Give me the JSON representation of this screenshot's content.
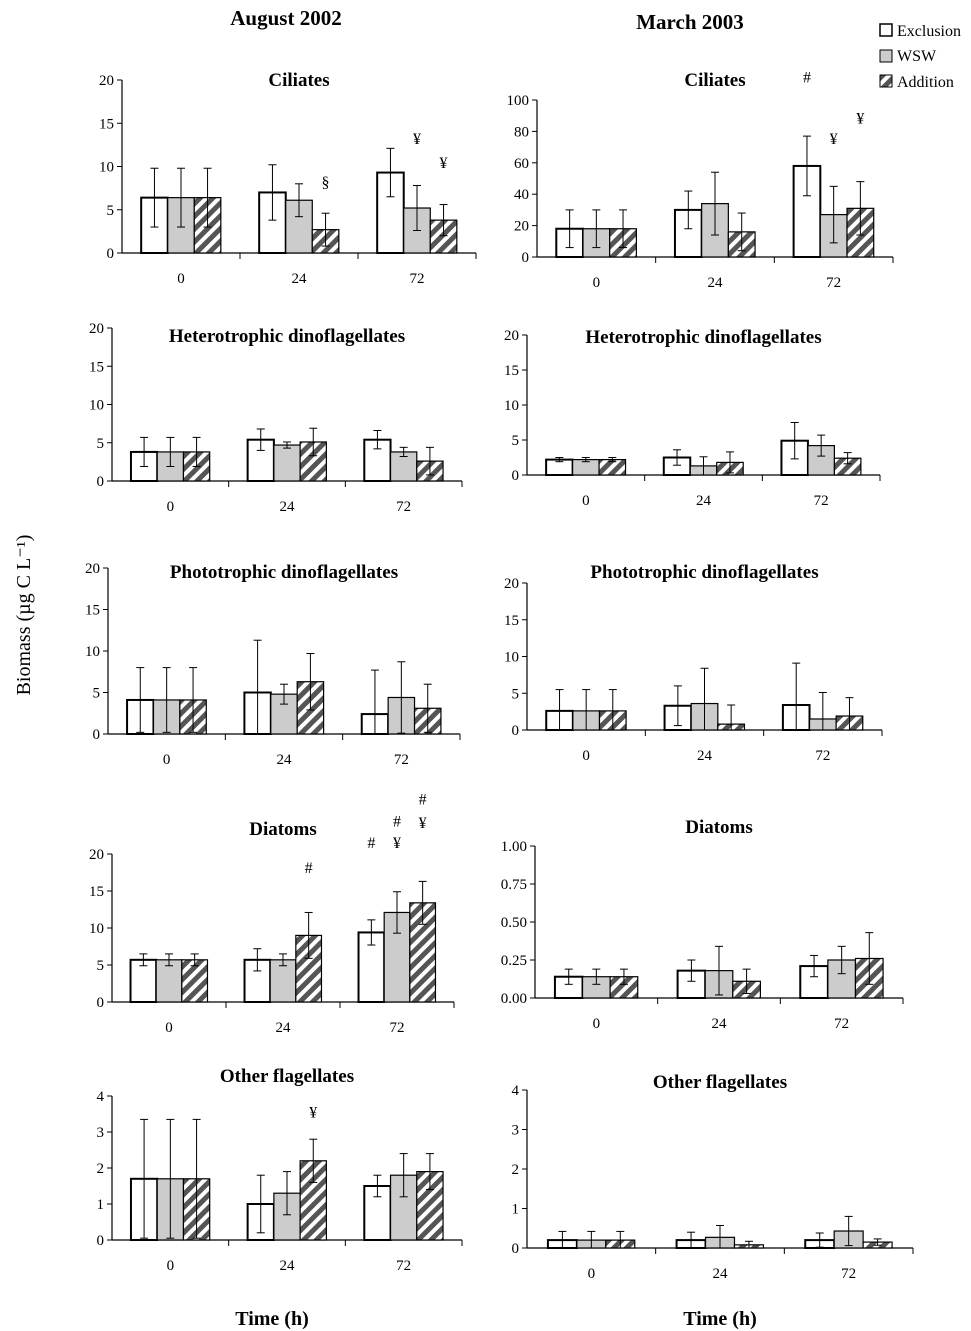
{
  "figure": {
    "columns": [
      "August 2002",
      "March 2003"
    ],
    "ylabel": "Biomass (µg C L⁻¹)",
    "xlabel": "Time (h)",
    "legend": [
      "Exclusion",
      "WSW",
      "Addition"
    ],
    "colors": {
      "Exclusion": "#ffffff",
      "WSW": "#cccccc",
      "Addition": "#555555"
    },
    "legend_position": "top-right"
  },
  "chart_data": [
    {
      "type": "bar",
      "column": "August 2002",
      "title": "Ciliates",
      "categories": [
        "0",
        "24",
        "72"
      ],
      "ylim": [
        0,
        20
      ],
      "yticks": [
        0,
        5,
        10,
        15,
        20
      ],
      "tickfmt": 0,
      "series": [
        {
          "name": "Exclusion",
          "values": [
            6.4,
            7.0,
            9.3
          ],
          "errors": [
            3.4,
            3.2,
            2.8
          ]
        },
        {
          "name": "WSW",
          "values": [
            6.4,
            6.1,
            5.2
          ],
          "errors": [
            3.4,
            1.9,
            2.6
          ]
        },
        {
          "name": "Addition",
          "values": [
            6.4,
            2.7,
            3.8
          ],
          "errors": [
            3.4,
            1.9,
            1.8
          ]
        }
      ],
      "annotations": [
        {
          "text": "§",
          "category": "24",
          "series": "Addition",
          "level": 7.6
        },
        {
          "text": "¥",
          "category": "72",
          "series": "WSW",
          "level": 12.6
        },
        {
          "text": "¥",
          "category": "72",
          "series": "Addition",
          "level": 9.8
        }
      ]
    },
    {
      "type": "bar",
      "column": "March 2003",
      "title": "Ciliates",
      "categories": [
        "0",
        "24",
        "72"
      ],
      "ylim": [
        0,
        100
      ],
      "yticks": [
        0,
        20,
        40,
        60,
        80,
        100
      ],
      "tickfmt": 0,
      "series": [
        {
          "name": "Exclusion",
          "values": [
            18,
            30,
            58
          ],
          "errors": [
            12,
            12,
            19
          ]
        },
        {
          "name": "WSW",
          "values": [
            18,
            34,
            27
          ],
          "errors": [
            12,
            20,
            18
          ]
        },
        {
          "name": "Addition",
          "values": [
            18,
            16,
            31
          ],
          "errors": [
            12,
            12,
            17
          ]
        }
      ],
      "annotations": [
        {
          "text": "#",
          "category": "72",
          "series": "Exclusion",
          "level": 111
        },
        {
          "text": "¥",
          "category": "72",
          "series": "WSW",
          "level": 72
        },
        {
          "text": "¥",
          "category": "72",
          "series": "Addition",
          "level": 85
        }
      ]
    },
    {
      "type": "bar",
      "column": "August 2002",
      "title": "Heterotrophic dinoflagellates",
      "categories": [
        "0",
        "24",
        "72"
      ],
      "ylim": [
        0,
        20
      ],
      "yticks": [
        0,
        5,
        10,
        15,
        20
      ],
      "tickfmt": 0,
      "series": [
        {
          "name": "Exclusion",
          "values": [
            3.8,
            5.4,
            5.4
          ],
          "errors": [
            1.9,
            1.4,
            1.2
          ]
        },
        {
          "name": "WSW",
          "values": [
            3.8,
            4.7,
            3.8
          ],
          "errors": [
            1.9,
            0.4,
            0.6
          ]
        },
        {
          "name": "Addition",
          "values": [
            3.8,
            5.1,
            2.6
          ],
          "errors": [
            1.9,
            1.8,
            1.8
          ]
        }
      ],
      "annotations": []
    },
    {
      "type": "bar",
      "column": "March 2003",
      "title": "Heterotrophic dinoflagellates",
      "categories": [
        "0",
        "24",
        "72"
      ],
      "ylim": [
        0,
        20
      ],
      "yticks": [
        0,
        5,
        10,
        15,
        20
      ],
      "tickfmt": 0,
      "series": [
        {
          "name": "Exclusion",
          "values": [
            2.2,
            2.5,
            4.9
          ],
          "errors": [
            0.3,
            1.1,
            2.6
          ]
        },
        {
          "name": "WSW",
          "values": [
            2.2,
            1.3,
            4.2
          ],
          "errors": [
            0.3,
            1.3,
            1.5
          ]
        },
        {
          "name": "Addition",
          "values": [
            2.2,
            1.8,
            2.4
          ],
          "errors": [
            0.3,
            1.5,
            0.8
          ]
        }
      ],
      "annotations": []
    },
    {
      "type": "bar",
      "column": "August 2002",
      "title": "Phototrophic dinoflagellates",
      "categories": [
        "0",
        "24",
        "72"
      ],
      "ylim": [
        0,
        20
      ],
      "yticks": [
        0,
        5,
        10,
        15,
        20
      ],
      "tickfmt": 0,
      "series": [
        {
          "name": "Exclusion",
          "values": [
            4.1,
            5.0,
            2.4
          ],
          "errors": [
            3.9,
            6.3,
            5.3
          ]
        },
        {
          "name": "WSW",
          "values": [
            4.1,
            4.8,
            4.4
          ],
          "errors": [
            3.9,
            1.2,
            4.3
          ]
        },
        {
          "name": "Addition",
          "values": [
            4.1,
            6.3,
            3.1
          ],
          "errors": [
            3.9,
            3.4,
            2.9
          ]
        }
      ],
      "annotations": []
    },
    {
      "type": "bar",
      "column": "March 2003",
      "title": "Phototrophic dinoflagellates",
      "categories": [
        "0",
        "24",
        "72"
      ],
      "ylim": [
        0,
        20
      ],
      "yticks": [
        0,
        5,
        10,
        15,
        20
      ],
      "tickfmt": 0,
      "series": [
        {
          "name": "Exclusion",
          "values": [
            2.6,
            3.3,
            3.4
          ],
          "errors": [
            2.9,
            2.7,
            5.7
          ]
        },
        {
          "name": "WSW",
          "values": [
            2.6,
            3.6,
            1.5
          ],
          "errors": [
            2.9,
            4.8,
            3.6
          ]
        },
        {
          "name": "Addition",
          "values": [
            2.6,
            0.8,
            1.9
          ],
          "errors": [
            2.9,
            2.6,
            2.5
          ]
        }
      ],
      "annotations": []
    },
    {
      "type": "bar",
      "column": "August 2002",
      "title": "Diatoms",
      "categories": [
        "0",
        "24",
        "72"
      ],
      "ylim": [
        0,
        20
      ],
      "yticks": [
        0,
        5,
        10,
        15,
        20
      ],
      "tickfmt": 0,
      "series": [
        {
          "name": "Exclusion",
          "values": [
            5.7,
            5.7,
            9.4
          ],
          "errors": [
            0.8,
            1.5,
            1.7
          ]
        },
        {
          "name": "WSW",
          "values": [
            5.7,
            5.7,
            12.1
          ],
          "errors": [
            0.8,
            0.8,
            2.8
          ]
        },
        {
          "name": "Addition",
          "values": [
            5.7,
            9.0,
            13.4
          ],
          "errors": [
            0.8,
            3.1,
            2.9
          ]
        }
      ],
      "annotations": [
        {
          "text": "#",
          "category": "24",
          "series": "Addition",
          "level": 17.4
        },
        {
          "text": "#",
          "category": "72",
          "series": "Exclusion",
          "level": 20.8
        },
        {
          "text": "¥",
          "category": "72",
          "series": "WSW",
          "level": 20.8
        },
        {
          "text": "#",
          "category": "72",
          "series": "WSW",
          "level": 23.7
        },
        {
          "text": "¥",
          "category": "72",
          "series": "Addition",
          "level": 23.5
        },
        {
          "text": "#",
          "category": "72",
          "series": "Addition",
          "level": 26.7
        }
      ]
    },
    {
      "type": "bar",
      "column": "March 2003",
      "title": "Diatoms",
      "categories": [
        "0",
        "24",
        "72"
      ],
      "ylim": [
        0,
        1
      ],
      "yticks": [
        0,
        0.25,
        0.5,
        0.75,
        1
      ],
      "tickfmt": 2,
      "series": [
        {
          "name": "Exclusion",
          "values": [
            0.14,
            0.18,
            0.21
          ],
          "errors": [
            0.05,
            0.07,
            0.07
          ]
        },
        {
          "name": "WSW",
          "values": [
            0.14,
            0.18,
            0.25
          ],
          "errors": [
            0.05,
            0.16,
            0.09
          ]
        },
        {
          "name": "Addition",
          "values": [
            0.14,
            0.11,
            0.26
          ],
          "errors": [
            0.05,
            0.08,
            0.17
          ]
        }
      ],
      "annotations": []
    },
    {
      "type": "bar",
      "column": "August 2002",
      "title": "Other flagellates",
      "categories": [
        "0",
        "24",
        "72"
      ],
      "ylim": [
        0,
        4
      ],
      "yticks": [
        0,
        1,
        2,
        3,
        4
      ],
      "tickfmt": 0,
      "series": [
        {
          "name": "Exclusion",
          "values": [
            1.7,
            1.0,
            1.5
          ],
          "errors": [
            1.65,
            0.8,
            0.3
          ]
        },
        {
          "name": "WSW",
          "values": [
            1.7,
            1.3,
            1.8
          ],
          "errors": [
            1.65,
            0.6,
            0.6
          ]
        },
        {
          "name": "Addition",
          "values": [
            1.7,
            2.2,
            1.9
          ],
          "errors": [
            1.65,
            0.6,
            0.5
          ]
        }
      ],
      "annotations": [
        {
          "text": "¥",
          "category": "24",
          "series": "Addition",
          "level": 3.4
        }
      ]
    },
    {
      "type": "bar",
      "column": "March 2003",
      "title": "Other flagellates",
      "categories": [
        "0",
        "24",
        "72"
      ],
      "ylim": [
        0,
        4
      ],
      "yticks": [
        0,
        1,
        2,
        3,
        4
      ],
      "tickfmt": 0,
      "series": [
        {
          "name": "Exclusion",
          "values": [
            0.2,
            0.2,
            0.2
          ],
          "errors": [
            0.22,
            0.2,
            0.18
          ]
        },
        {
          "name": "WSW",
          "values": [
            0.2,
            0.27,
            0.43
          ],
          "errors": [
            0.22,
            0.3,
            0.37
          ]
        },
        {
          "name": "Addition",
          "values": [
            0.2,
            0.08,
            0.15
          ],
          "errors": [
            0.22,
            0.09,
            0.08
          ]
        }
      ],
      "annotations": []
    }
  ]
}
